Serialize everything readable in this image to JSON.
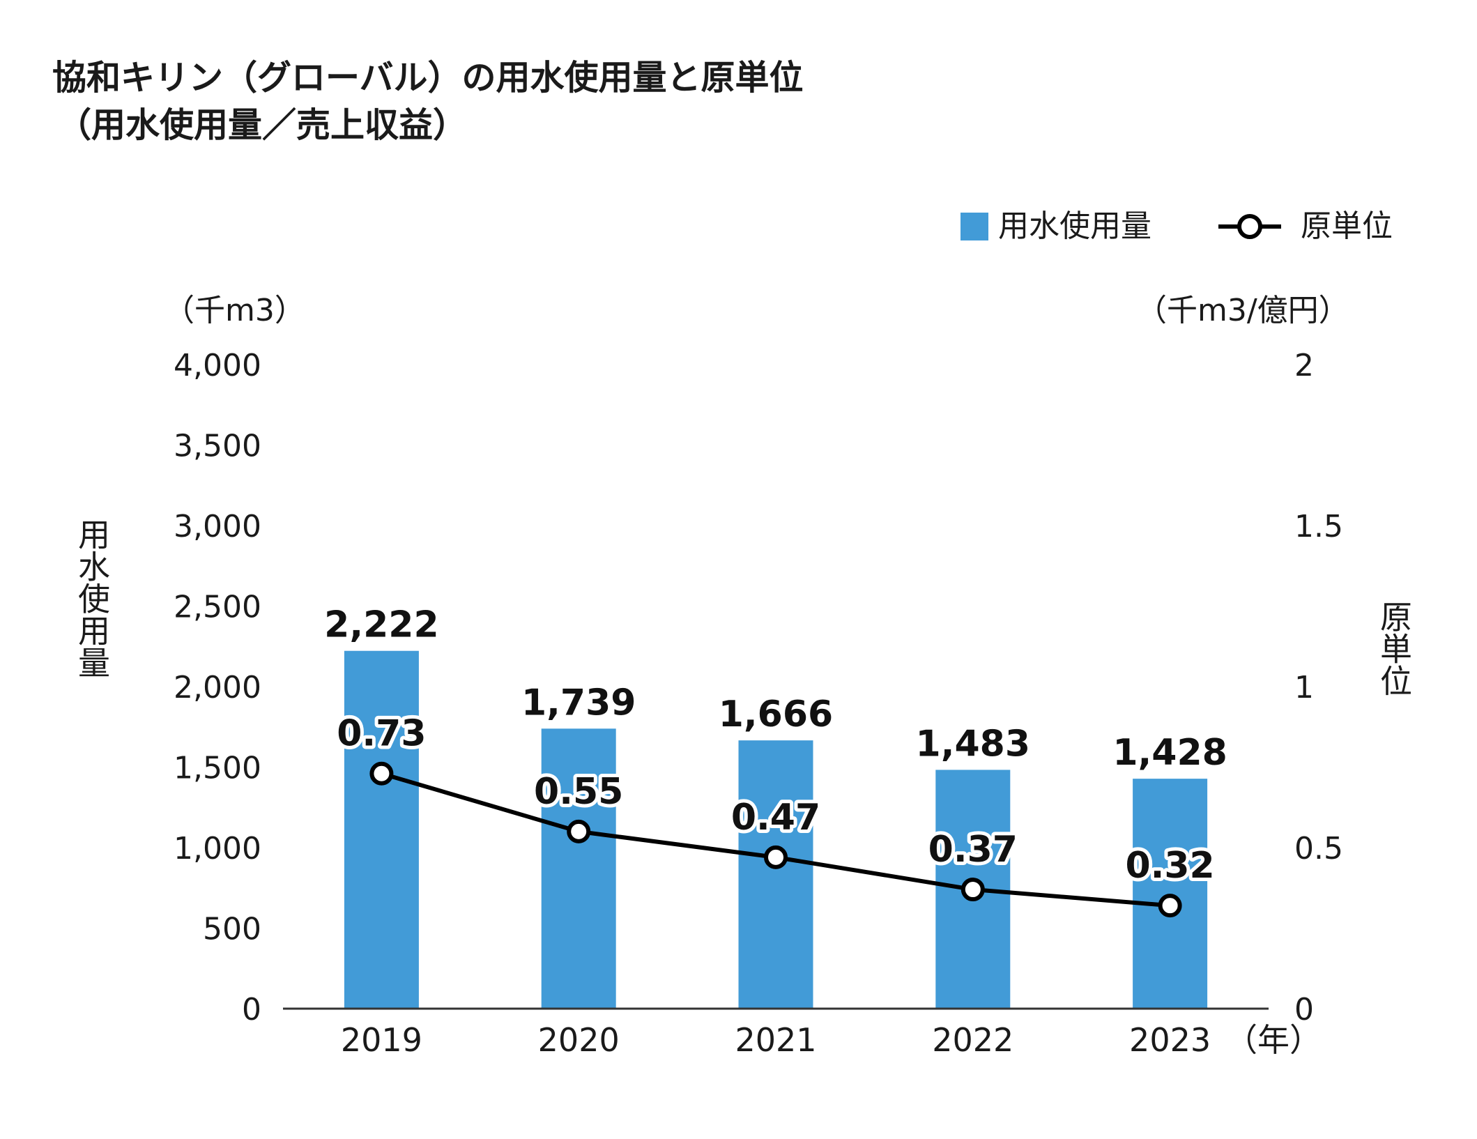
{
  "chart_data": {
    "type": "bar",
    "title": "協和キリン（グローバル）の用水使用量と原単位",
    "subtitle": "（用水使用量／売上収益）",
    "categories": [
      "2019",
      "2020",
      "2021",
      "2022",
      "2023"
    ],
    "x_unit": "（年）",
    "series": [
      {
        "name": "用水使用量",
        "type": "bar",
        "axis": "left",
        "color": "#429bd7",
        "values": [
          2222,
          1739,
          1666,
          1483,
          1428
        ],
        "labels": [
          "2,222",
          "1,739",
          "1,666",
          "1,483",
          "1,428"
        ]
      },
      {
        "name": "原単位",
        "type": "line",
        "axis": "right",
        "color": "#000000",
        "values": [
          0.73,
          0.55,
          0.47,
          0.37,
          0.32
        ],
        "labels": [
          "0.73",
          "0.55",
          "0.47",
          "0.37",
          "0.32"
        ]
      }
    ],
    "y_left": {
      "label": "用水使用量",
      "unit": "（千m3）",
      "ylim": [
        0,
        4000
      ],
      "ticks": [
        0,
        500,
        1000,
        1500,
        2000,
        2500,
        3000,
        3500,
        4000
      ],
      "tick_labels": [
        "0",
        "500",
        "1,000",
        "1,500",
        "2,000",
        "2,500",
        "3,000",
        "3,500",
        "4,000"
      ]
    },
    "y_right": {
      "label": "原単位",
      "unit": "（千m3/億円）",
      "ylim": [
        0,
        2
      ],
      "ticks": [
        0,
        0.5,
        1,
        1.5,
        2
      ],
      "tick_labels": [
        "0",
        "0.5",
        "1",
        "1.5",
        "2"
      ]
    },
    "legend": {
      "position": "top-right",
      "items": [
        "用水使用量",
        "原単位"
      ]
    },
    "grid": false
  }
}
